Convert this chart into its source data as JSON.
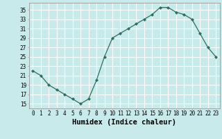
{
  "x": [
    0,
    1,
    2,
    3,
    4,
    5,
    6,
    7,
    8,
    9,
    10,
    11,
    12,
    13,
    14,
    15,
    16,
    17,
    18,
    19,
    20,
    21,
    22,
    23
  ],
  "y": [
    22,
    21,
    19,
    18,
    17,
    16,
    15,
    16,
    20,
    25,
    29,
    30,
    31,
    32,
    33,
    34,
    35.5,
    35.5,
    34.5,
    34,
    33,
    30,
    27,
    25
  ],
  "line_color": "#2d6e5e",
  "marker": "D",
  "marker_size": 2.2,
  "bg_color": "#c8eaea",
  "grid_color": "#ffffff",
  "ylabel_ticks": [
    15,
    17,
    19,
    21,
    23,
    25,
    27,
    29,
    31,
    33,
    35
  ],
  "ylim": [
    14,
    36.5
  ],
  "xlim": [
    -0.5,
    23.5
  ],
  "xlabel": "Humidex (Indice chaleur)",
  "xlabel_fontsize": 7.5,
  "tick_fontsize": 5.5
}
